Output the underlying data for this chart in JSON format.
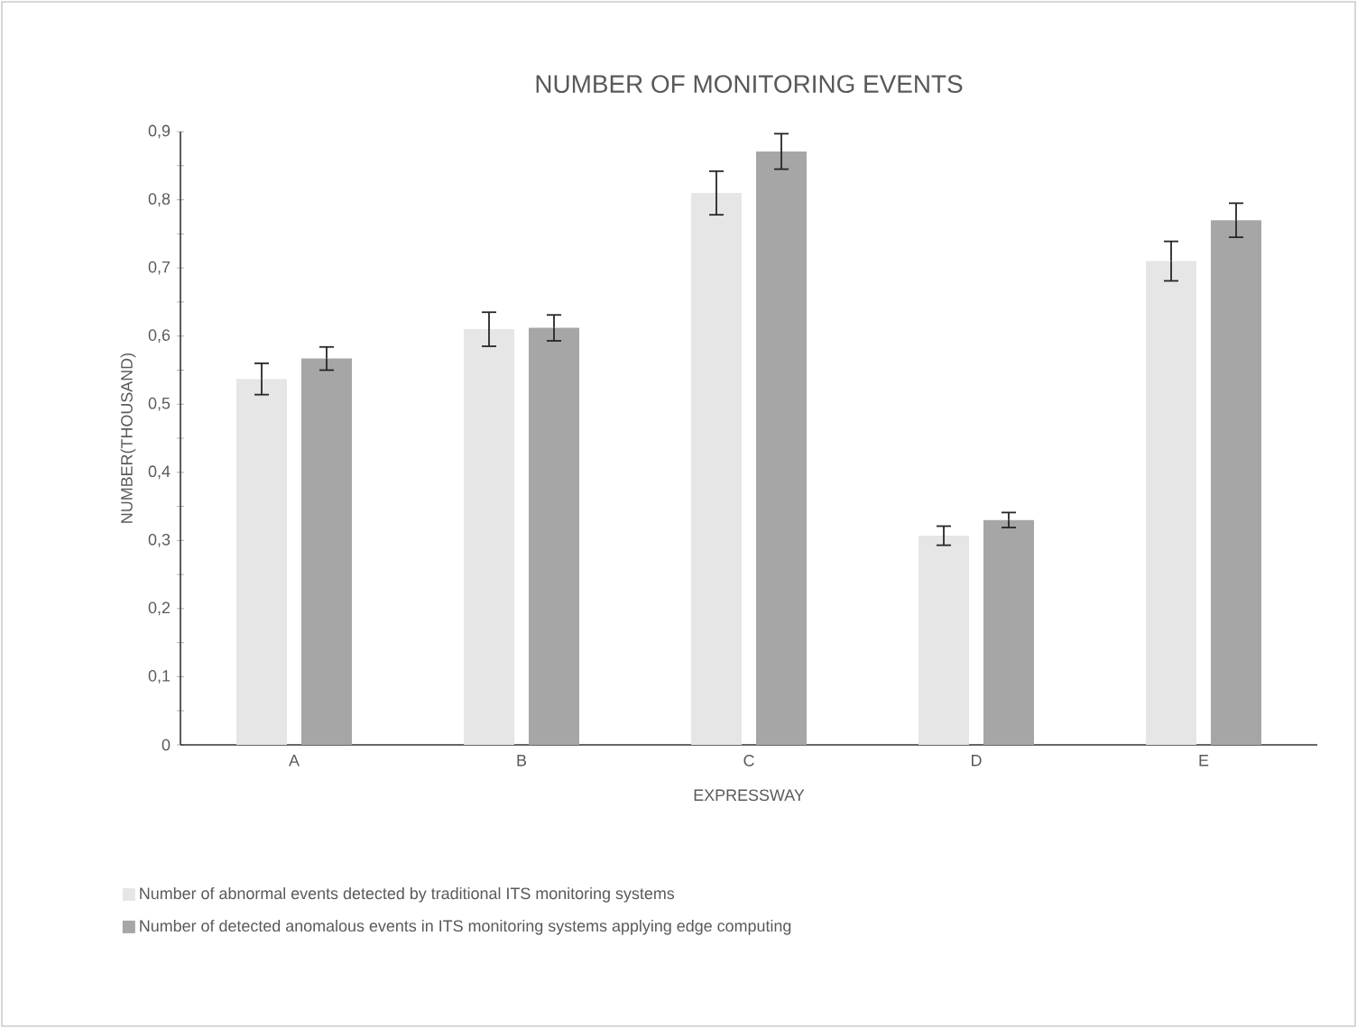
{
  "chart_data": {
    "type": "bar",
    "title": "NUMBER OF MONITORING EVENTS",
    "xlabel": "EXPRESSWAY",
    "ylabel": "NUMBER(THOUSAND)",
    "categories": [
      "A",
      "B",
      "C",
      "D",
      "E"
    ],
    "series": [
      {
        "name": "Number of abnormal events detected by traditional ITS monitoring systems",
        "color": "#e6e6e6",
        "values": [
          0.537,
          0.61,
          0.81,
          0.307,
          0.71
        ],
        "errors": [
          0.023,
          0.025,
          0.032,
          0.014,
          0.029
        ]
      },
      {
        "name": "Number of detected anomalous events in ITS monitoring systems applying edge computing",
        "color": "#a6a6a6",
        "values": [
          0.567,
          0.612,
          0.871,
          0.33,
          0.77
        ],
        "errors": [
          0.017,
          0.019,
          0.026,
          0.011,
          0.025
        ]
      }
    ],
    "ylim": [
      0,
      0.9
    ],
    "yticks": [
      {
        "value": 0,
        "label": "0"
      },
      {
        "value": 0.05,
        "label": null
      },
      {
        "value": 0.1,
        "label": "0,1"
      },
      {
        "value": 0.15,
        "label": null
      },
      {
        "value": 0.2,
        "label": "0,2"
      },
      {
        "value": 0.25,
        "label": null
      },
      {
        "value": 0.3,
        "label": "0,3"
      },
      {
        "value": 0.35,
        "label": null
      },
      {
        "value": 0.4,
        "label": "0,4"
      },
      {
        "value": 0.45,
        "label": null
      },
      {
        "value": 0.5,
        "label": "0,5"
      },
      {
        "value": 0.55,
        "label": null
      },
      {
        "value": 0.6,
        "label": "0,6"
      },
      {
        "value": 0.65,
        "label": null
      },
      {
        "value": 0.7,
        "label": "0,7"
      },
      {
        "value": 0.75,
        "label": null
      },
      {
        "value": 0.8,
        "label": "0,8"
      },
      {
        "value": 0.85,
        "label": null
      },
      {
        "value": 0.9,
        "label": "0,9"
      }
    ],
    "grid": false,
    "legend": "bottom"
  }
}
